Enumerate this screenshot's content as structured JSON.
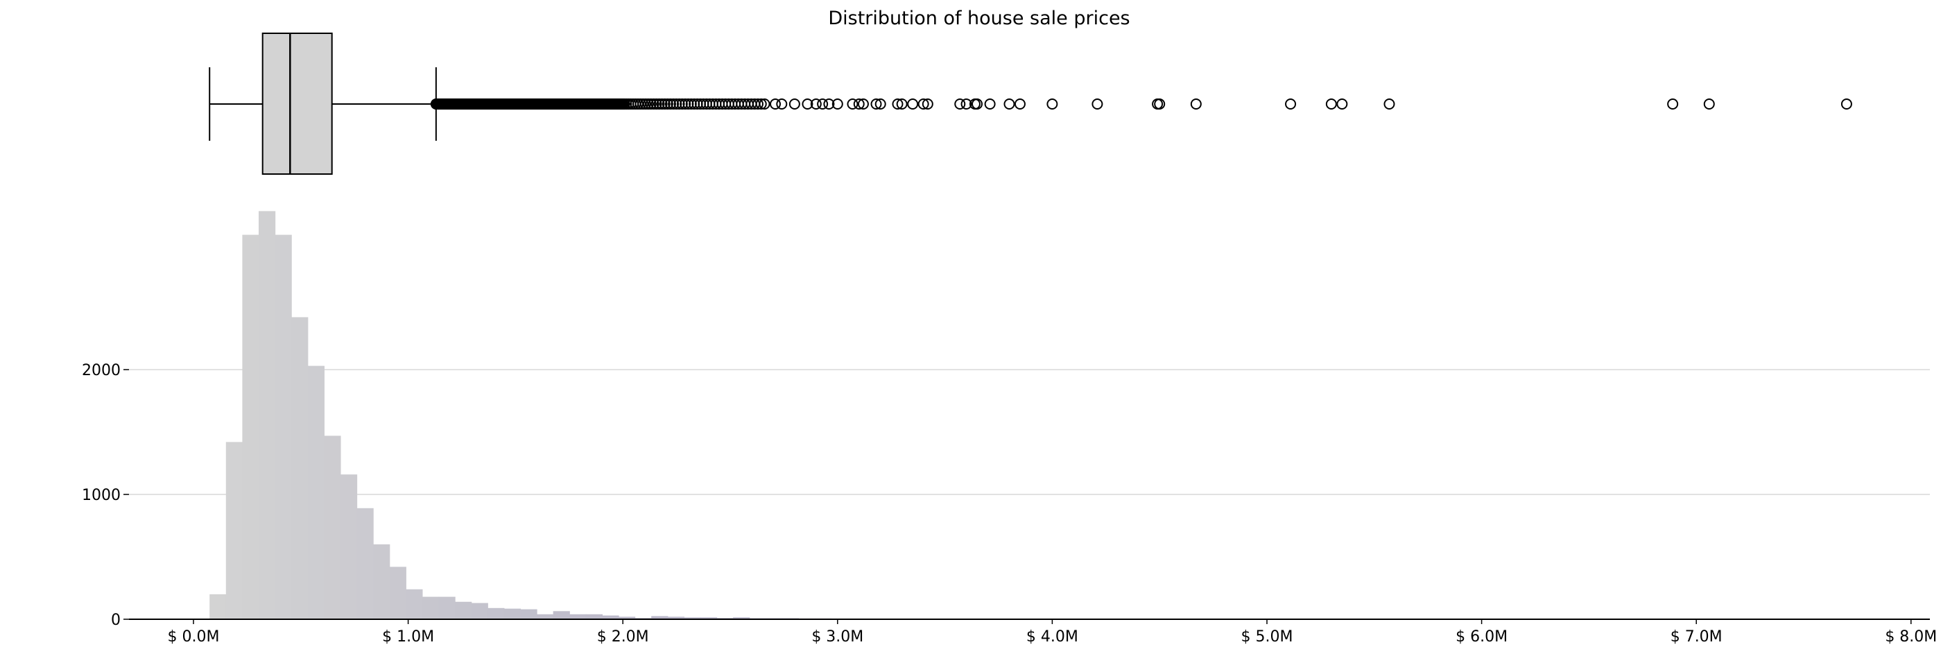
{
  "chart_data": [
    {
      "type": "box",
      "title": "Distribution of house sale prices",
      "orientation": "horizontal",
      "whisker_low": 0.075,
      "q1": 0.322,
      "median": 0.45,
      "q3": 0.645,
      "whisker_high": 1.13,
      "box_color": "#d3d3d3",
      "outlier_segments": [
        {
          "from": 1.13,
          "to": 2.0,
          "count": 210
        },
        {
          "from": 2.0,
          "to": 2.66,
          "count": 50
        }
      ],
      "outliers": [
        2.71,
        2.74,
        2.8,
        2.86,
        2.9,
        2.93,
        2.96,
        3.0,
        3.07,
        3.1,
        3.12,
        3.18,
        3.2,
        3.28,
        3.3,
        3.35,
        3.4,
        3.42,
        3.57,
        3.6,
        3.64,
        3.65,
        3.71,
        3.8,
        3.85,
        4.0,
        4.21,
        4.49,
        4.5,
        4.67,
        5.11,
        5.3,
        5.35,
        5.57,
        6.89,
        7.06,
        7.7
      ],
      "xlim": [
        -0.3,
        8.1
      ]
    },
    {
      "type": "bar",
      "x_tick_labels": [
        "$ 0.0M",
        "$ 1.0M",
        "$ 2.0M",
        "$ 3.0M",
        "$ 4.0M",
        "$ 5.0M",
        "$ 6.0M",
        "$ 7.0M",
        "$ 8.0M"
      ],
      "x_ticks": [
        0,
        1,
        2,
        3,
        4,
        5,
        6,
        7,
        8
      ],
      "y_ticks": [
        0,
        1000,
        2000
      ],
      "y_tick_labels": [
        "0",
        "1000",
        "2000"
      ],
      "xlim": [
        -0.3,
        8.1
      ],
      "ylim": [
        0,
        3300
      ],
      "bin_start": 0.075,
      "bin_width": 0.0762,
      "values": [
        200,
        1420,
        3080,
        3270,
        3080,
        2420,
        2030,
        1470,
        1160,
        890,
        600,
        420,
        240,
        180,
        180,
        140,
        130,
        90,
        85,
        80,
        40,
        65,
        40,
        40,
        30,
        20,
        10,
        25,
        20,
        15,
        15,
        10,
        15,
        8,
        8,
        8,
        6,
        6,
        5,
        5,
        4,
        4,
        4,
        4,
        3,
        3,
        3,
        3,
        3,
        3,
        2,
        2,
        2,
        2,
        2,
        2,
        2,
        2,
        2,
        2,
        1,
        1,
        1,
        1,
        1,
        1,
        1,
        1,
        1,
        1,
        1,
        1,
        1,
        1,
        1,
        1,
        1,
        1,
        1,
        1,
        1,
        1,
        1,
        1,
        1,
        1,
        1,
        1,
        1,
        1,
        1,
        1,
        1,
        1,
        1,
        1,
        1,
        1,
        1,
        1
      ],
      "color_start": "#d3d3d3",
      "color_end": "#aeaac4",
      "grid": "horizontal"
    }
  ]
}
